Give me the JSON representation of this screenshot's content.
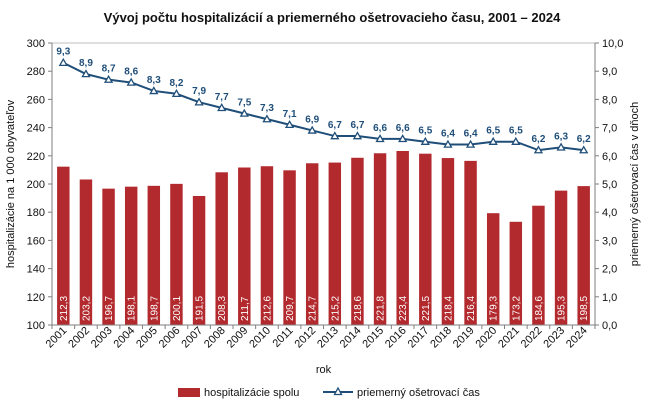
{
  "chart_data": {
    "type": "bar",
    "title": "Vývoj počtu hospitalizácií a priemerného ošetrovacieho času, 2001 – 2024",
    "xlabel": "rok",
    "ylabel": "hospitalizácie na 1 000 obyvateľov",
    "y2label": "priemerný ošetrovací čas v dňoch",
    "ylim": [
      100,
      300
    ],
    "y2lim": [
      0,
      10
    ],
    "yticks": [
      "100",
      "120",
      "140",
      "160",
      "180",
      "200",
      "220",
      "240",
      "260",
      "280",
      "300"
    ],
    "y2ticks": [
      "0,0",
      "1,0",
      "2,0",
      "3,0",
      "4,0",
      "5,0",
      "6,0",
      "7,0",
      "8,0",
      "9,0",
      "10,0"
    ],
    "grid": false,
    "legend_position": "bottom",
    "categories": [
      "2001",
      "2002",
      "2003",
      "2004",
      "2005",
      "2006",
      "2007",
      "2008",
      "2009",
      "2010",
      "2011",
      "2012",
      "2013",
      "2014",
      "2015",
      "2016",
      "2017",
      "2018",
      "2019",
      "2020",
      "2021",
      "2022",
      "2023",
      "2024"
    ],
    "series": [
      {
        "name": "hospitalizácie spolu",
        "type": "bar",
        "axis": "left",
        "color": "#b22a2e",
        "values": [
          212.3,
          203.2,
          196.7,
          198.1,
          198.7,
          200.1,
          191.5,
          208.3,
          211.7,
          212.6,
          209.7,
          214.7,
          215.2,
          218.6,
          221.8,
          223.4,
          221.5,
          218.4,
          216.4,
          179.3,
          173.2,
          184.6,
          195.3,
          198.5
        ],
        "labels": [
          "212,3",
          "203,2",
          "196,7",
          "198,1",
          "198,7",
          "200,1",
          "191,5",
          "208,3",
          "211,7",
          "212,6",
          "209,7",
          "214,7",
          "215,2",
          "218,6",
          "221,8",
          "223,4",
          "221,5",
          "218,4",
          "216,4",
          "179,3",
          "173,2",
          "184,6",
          "195,3",
          "198,5"
        ]
      },
      {
        "name": "priemerný ošetrovací čas",
        "type": "line",
        "axis": "right",
        "color": "#1f4e79",
        "values": [
          9.3,
          8.9,
          8.7,
          8.6,
          8.3,
          8.2,
          7.9,
          7.7,
          7.5,
          7.3,
          7.1,
          6.9,
          6.7,
          6.7,
          6.6,
          6.6,
          6.5,
          6.4,
          6.4,
          6.5,
          6.5,
          6.2,
          6.3,
          6.2
        ],
        "labels": [
          "9,3",
          "8,9",
          "8,7",
          "8,6",
          "8,3",
          "8,2",
          "7,9",
          "7,7",
          "7,5",
          "7,3",
          "7,1",
          "6,9",
          "6,7",
          "6,7",
          "6,6",
          "6,6",
          "6,5",
          "6,4",
          "6,4",
          "6,5",
          "6,5",
          "6,2",
          "6,3",
          "6,2"
        ]
      }
    ]
  }
}
